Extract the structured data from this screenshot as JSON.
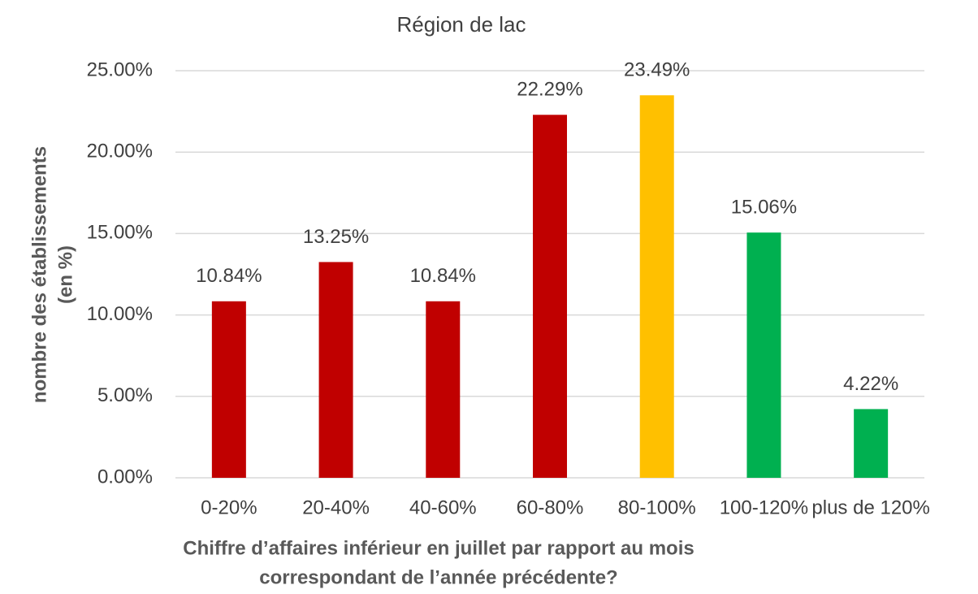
{
  "chart_data": {
    "type": "bar",
    "title": "Région de lac",
    "y_label": [
      "nombre des établissements",
      "(en %)"
    ],
    "x_label": [
      "Chiffre d’affaires inférieur en juillet par rapport au mois",
      "correspondant de l’année précédente?"
    ],
    "categories": [
      "0-20%",
      "20-40%",
      "40-60%",
      "60-80%",
      "80-100%",
      "100-120%",
      "plus de 120%"
    ],
    "values": [
      10.84,
      13.25,
      10.84,
      22.29,
      23.49,
      15.06,
      4.22
    ],
    "value_labels": [
      "10.84%",
      "13.25%",
      "10.84%",
      "22.29%",
      "23.49%",
      "15.06%",
      "4.22%"
    ],
    "colors": [
      "#c00000",
      "#c00000",
      "#c00000",
      "#c00000",
      "#ffc000",
      "#00b050",
      "#00b050"
    ],
    "ylim": [
      0,
      25
    ],
    "yticks": [
      {
        "value": 0,
        "label": "0.00%"
      },
      {
        "value": 5,
        "label": "5.00%"
      },
      {
        "value": 10,
        "label": "10.00%"
      },
      {
        "value": 15,
        "label": "15.00%"
      },
      {
        "value": 20,
        "label": "20.00%"
      },
      {
        "value": 25,
        "label": "25.00%"
      }
    ],
    "grid": true
  }
}
